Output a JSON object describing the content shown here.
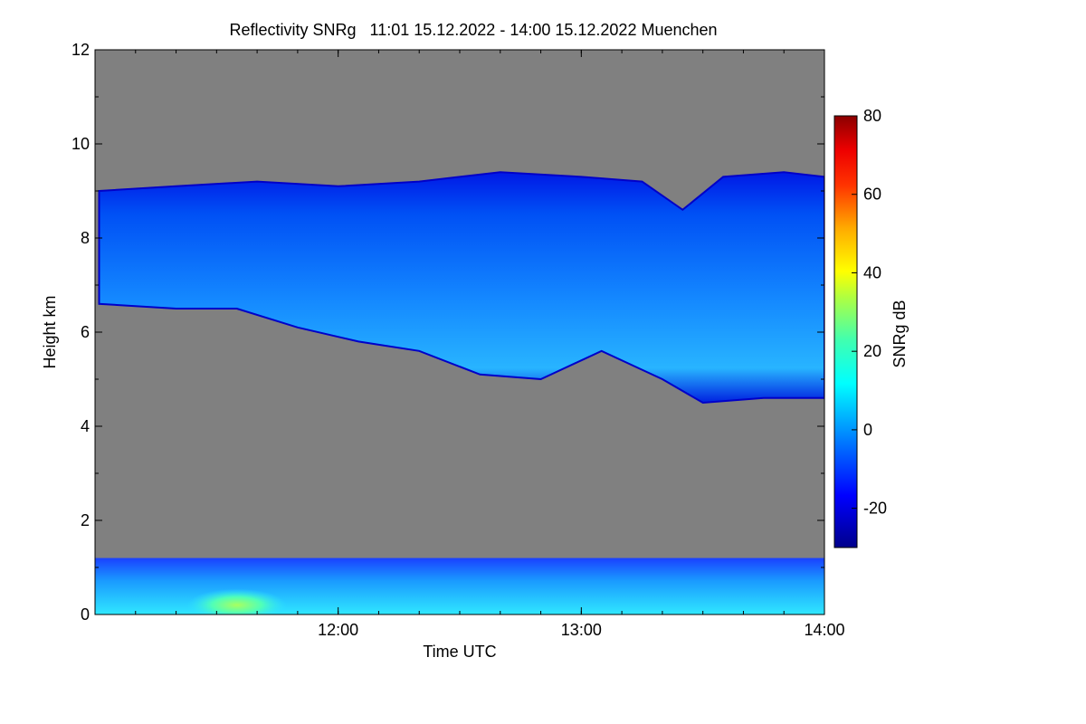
{
  "chart_data": {
    "type": "heatmap",
    "title": "Reflectivity SNRg   11:01 15.12.2022 - 14:00 15.12.2022 Muenchen",
    "xlabel": "Time UTC",
    "ylabel": "Height km",
    "x_range": [
      "11:01",
      "14:00"
    ],
    "x_ticks": [
      "12:00",
      "13:00",
      "14:00"
    ],
    "ylim": [
      0,
      12
    ],
    "y_ticks": [
      0,
      2,
      4,
      6,
      8,
      10,
      12
    ],
    "colorbar": {
      "label": "SNRg dB",
      "range": [
        -30,
        80
      ],
      "ticks": [
        -20,
        0,
        20,
        40,
        60,
        80
      ]
    },
    "background_color": "#808080",
    "cloud_layer": {
      "base_km": [
        {
          "time": "11:01",
          "height": 6.6
        },
        {
          "time": "11:20",
          "height": 6.5
        },
        {
          "time": "11:35",
          "height": 6.5
        },
        {
          "time": "11:50",
          "height": 6.1
        },
        {
          "time": "12:05",
          "height": 5.8
        },
        {
          "time": "12:20",
          "height": 5.6
        },
        {
          "time": "12:35",
          "height": 5.1
        },
        {
          "time": "12:50",
          "height": 5.0
        },
        {
          "time": "13:05",
          "height": 5.6
        },
        {
          "time": "13:20",
          "height": 5.0
        },
        {
          "time": "13:30",
          "height": 4.5
        },
        {
          "time": "13:45",
          "height": 4.6
        },
        {
          "time": "14:00",
          "height": 4.6
        }
      ],
      "top_km": [
        {
          "time": "11:01",
          "height": 9.0
        },
        {
          "time": "11:20",
          "height": 9.1
        },
        {
          "time": "11:40",
          "height": 9.2
        },
        {
          "time": "12:00",
          "height": 9.1
        },
        {
          "time": "12:20",
          "height": 9.2
        },
        {
          "time": "12:40",
          "height": 9.4
        },
        {
          "time": "13:00",
          "height": 9.3
        },
        {
          "time": "13:15",
          "height": 9.2
        },
        {
          "time": "13:25",
          "height": 8.6
        },
        {
          "time": "13:35",
          "height": 9.3
        },
        {
          "time": "13:50",
          "height": 9.4
        },
        {
          "time": "14:00",
          "height": 9.3
        }
      ],
      "typical_snr_db": -10
    },
    "boundary_layer": {
      "top_km": 1.2,
      "typical_snr_db": 0,
      "peak_snr_db": 30,
      "peak_time": "11:35"
    }
  }
}
